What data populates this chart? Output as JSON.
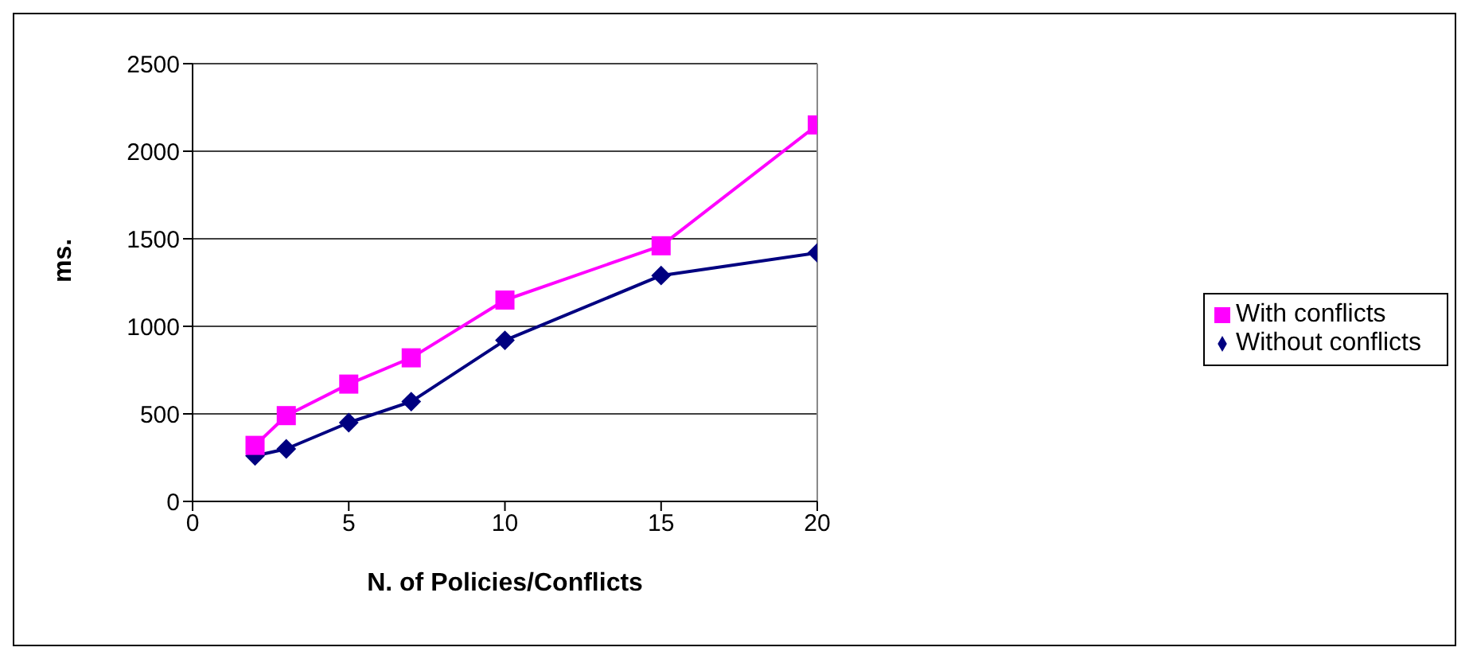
{
  "chart_data": {
    "type": "line",
    "xlabel": "N. of Policies/Conflicts",
    "ylabel": "ms.",
    "x": [
      2,
      3,
      5,
      7,
      10,
      15,
      20
    ],
    "series": [
      {
        "name": "Without conflicts",
        "color": "#000080",
        "marker": "diamond",
        "values": [
          260,
          300,
          450,
          570,
          920,
          1290,
          1420
        ]
      },
      {
        "name": "With conflicts",
        "color": "#ff00ff",
        "marker": "square",
        "values": [
          320,
          490,
          670,
          820,
          1150,
          1460,
          2150
        ]
      }
    ],
    "xlim": [
      0,
      20
    ],
    "xticks": [
      0,
      5,
      10,
      15,
      20
    ],
    "ylim": [
      0,
      2500
    ],
    "yticks": [
      0,
      500,
      1000,
      1500,
      2000,
      2500
    ],
    "grid": "y",
    "legend": "right",
    "line_style": "solid"
  }
}
